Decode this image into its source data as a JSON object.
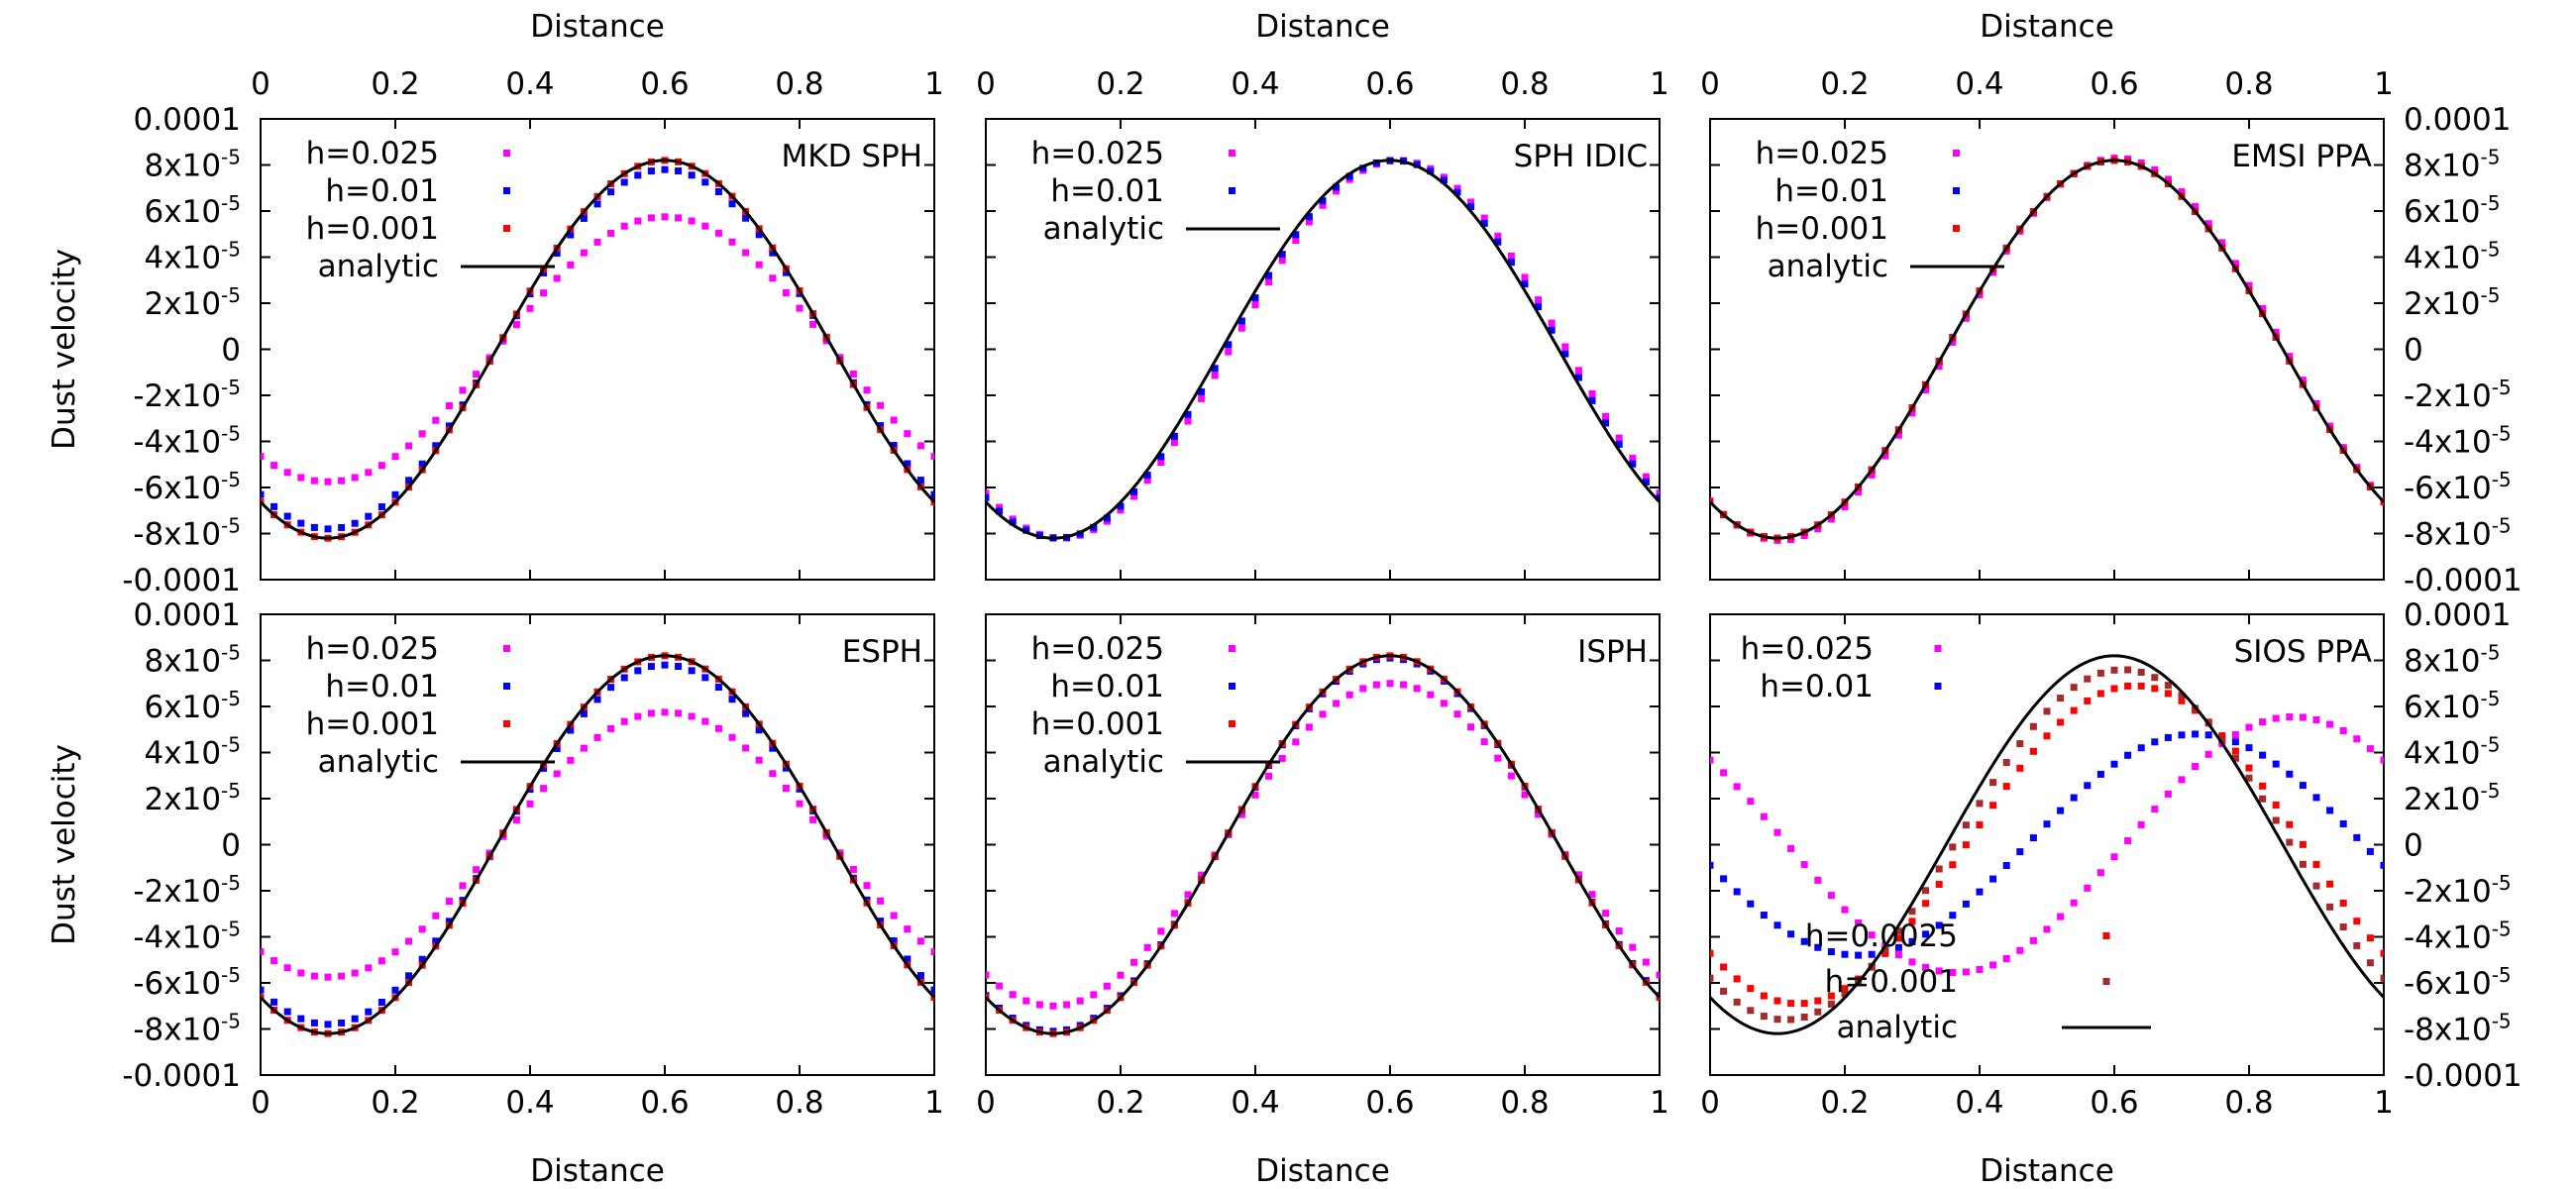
{
  "figure": {
    "x_axis_label": "Distance",
    "y_axis_label": "Dust velocity",
    "x_ticks": [
      "0",
      "0.2",
      "0.4",
      "0.6",
      "0.8",
      "1"
    ],
    "y_ticks": [
      {
        "v": 0.0001,
        "base": "0.0001",
        "exp": ""
      },
      {
        "v": 8e-05,
        "base": "8x10",
        "exp": "-5"
      },
      {
        "v": 6e-05,
        "base": "6x10",
        "exp": "-5"
      },
      {
        "v": 4e-05,
        "base": "4x10",
        "exp": "-5"
      },
      {
        "v": 2e-05,
        "base": "2x10",
        "exp": "-5"
      },
      {
        "v": 0,
        "base": "0",
        "exp": ""
      },
      {
        "v": -2e-05,
        "base": "-2x10",
        "exp": "-5"
      },
      {
        "v": -4e-05,
        "base": "-4x10",
        "exp": "-5"
      },
      {
        "v": -6e-05,
        "base": "-6x10",
        "exp": "-5"
      },
      {
        "v": -8e-05,
        "base": "-8x10",
        "exp": "-5"
      },
      {
        "v": -0.0001,
        "base": "-0.0001",
        "exp": ""
      }
    ],
    "colors": {
      "magenta": "#ff00ff",
      "blue": "#0000ff",
      "red": "#ff0000",
      "brown": "#a52a2a",
      "black": "#000000"
    }
  },
  "chart_data": [
    {
      "type": "scatter",
      "title": "MKD SPH",
      "xlabel": "Distance",
      "ylabel": "Dust velocity",
      "xlim": [
        0,
        1
      ],
      "ylim": [
        -0.0001,
        0.0001
      ],
      "legend": "top-left",
      "series": [
        {
          "name": "h=0.025",
          "kind": "points",
          "color": "#ff00ff",
          "amplitude": 5.75e-05,
          "phase_shift": 0.0
        },
        {
          "name": "h=0.01",
          "kind": "points",
          "color": "#0000ff",
          "amplitude": 7.8e-05,
          "phase_shift": 0.0
        },
        {
          "name": "h=0.001",
          "kind": "points",
          "color": "#ff0000",
          "amplitude": 8.2e-05,
          "phase_shift": 0.0
        },
        {
          "name": "analytic",
          "kind": "line",
          "color": "#000000",
          "amplitude": 8.2e-05,
          "phase_shift": 0.0
        }
      ]
    },
    {
      "type": "scatter",
      "title": "SPH IDIC",
      "xlabel": "Distance",
      "ylabel": "Dust velocity",
      "xlim": [
        0,
        1
      ],
      "ylim": [
        -0.0001,
        0.0001
      ],
      "legend": "top-left",
      "series": [
        {
          "name": "h=0.025",
          "kind": "points",
          "color": "#ff00ff",
          "amplitude": 8.2e-05,
          "phase_shift": -0.012
        },
        {
          "name": "h=0.01",
          "kind": "points",
          "color": "#0000ff",
          "amplitude": 8.2e-05,
          "phase_shift": -0.006
        },
        {
          "name": "analytic",
          "kind": "line",
          "color": "#000000",
          "amplitude": 8.2e-05,
          "phase_shift": 0.0
        }
      ]
    },
    {
      "type": "scatter",
      "title": "EMSI PPA",
      "xlabel": "Distance",
      "ylabel": "Dust velocity",
      "xlim": [
        0,
        1
      ],
      "ylim": [
        -0.0001,
        0.0001
      ],
      "legend": "top-left",
      "series": [
        {
          "name": "h=0.025",
          "kind": "points",
          "color": "#ff00ff",
          "amplitude": 8.3e-05,
          "phase_shift": -0.004
        },
        {
          "name": "h=0.01",
          "kind": "points",
          "color": "#0000ff",
          "amplitude": 8.2e-05,
          "phase_shift": 0.0
        },
        {
          "name": "h=0.001",
          "kind": "points",
          "color": "#ff0000",
          "amplitude": 8.2e-05,
          "phase_shift": 0.0
        },
        {
          "name": "analytic",
          "kind": "line",
          "color": "#000000",
          "amplitude": 8.2e-05,
          "phase_shift": 0.0
        }
      ]
    },
    {
      "type": "scatter",
      "title": "ESPH",
      "xlabel": "Distance",
      "ylabel": "Dust velocity",
      "xlim": [
        0,
        1
      ],
      "ylim": [
        -0.0001,
        0.0001
      ],
      "legend": "top-left",
      "series": [
        {
          "name": "h=0.025",
          "kind": "points",
          "color": "#ff00ff",
          "amplitude": 5.75e-05,
          "phase_shift": 0.0
        },
        {
          "name": "h=0.01",
          "kind": "points",
          "color": "#0000ff",
          "amplitude": 7.8e-05,
          "phase_shift": 0.0
        },
        {
          "name": "h=0.001",
          "kind": "points",
          "color": "#ff0000",
          "amplitude": 8.2e-05,
          "phase_shift": 0.0
        },
        {
          "name": "analytic",
          "kind": "line",
          "color": "#000000",
          "amplitude": 8.2e-05,
          "phase_shift": 0.0
        }
      ]
    },
    {
      "type": "scatter",
      "title": "ISPH",
      "xlabel": "Distance",
      "ylabel": "Dust velocity",
      "xlim": [
        0,
        1
      ],
      "ylim": [
        -0.0001,
        0.0001
      ],
      "legend": "top-left",
      "series": [
        {
          "name": "h=0.025",
          "kind": "points",
          "color": "#ff00ff",
          "amplitude": 7e-05,
          "phase_shift": 0.0
        },
        {
          "name": "h=0.01",
          "kind": "points",
          "color": "#0000ff",
          "amplitude": 8.1e-05,
          "phase_shift": 0.0
        },
        {
          "name": "h=0.001",
          "kind": "points",
          "color": "#ff0000",
          "amplitude": 8.2e-05,
          "phase_shift": 0.0
        },
        {
          "name": "analytic",
          "kind": "line",
          "color": "#000000",
          "amplitude": 8.2e-05,
          "phase_shift": 0.0
        }
      ]
    },
    {
      "type": "scatter",
      "title": "SIOS PPA",
      "xlabel": "Distance",
      "ylabel": "Dust velocity",
      "xlim": [
        0,
        1
      ],
      "ylim": [
        -0.0001,
        0.0001
      ],
      "legend": "split: top-left and bottom-right",
      "series": [
        {
          "name": "h=0.025",
          "kind": "points",
          "color": "#ff00ff",
          "amplitude": 5.55e-05,
          "phase_shift": -0.265
        },
        {
          "name": "h=0.01",
          "kind": "points",
          "color": "#0000ff",
          "amplitude": 4.8e-05,
          "phase_shift": -0.12
        },
        {
          "name": "h=0.0025",
          "kind": "points",
          "color": "#ff0000",
          "amplitude": 6.9e-05,
          "phase_shift": -0.03
        },
        {
          "name": "h=0.001",
          "kind": "points",
          "color": "#a52a2a",
          "amplitude": 7.6e-05,
          "phase_shift": -0.012
        },
        {
          "name": "analytic",
          "kind": "line",
          "color": "#000000",
          "amplitude": 8.2e-05,
          "phase_shift": 0.0
        }
      ]
    }
  ]
}
